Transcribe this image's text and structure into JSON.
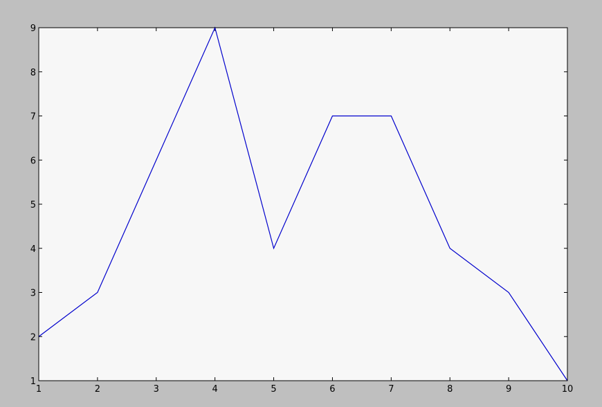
{
  "chart_data": {
    "type": "line",
    "title": "",
    "xlabel": "",
    "ylabel": "",
    "xlim": [
      1,
      10
    ],
    "ylim": [
      1,
      9
    ],
    "x_ticks": [
      "1",
      "2",
      "3",
      "4",
      "5",
      "6",
      "7",
      "8",
      "9",
      "10"
    ],
    "y_ticks": [
      "1",
      "2",
      "3",
      "4",
      "5",
      "6",
      "7",
      "8",
      "9"
    ],
    "grid": false,
    "series": [
      {
        "color": "#0000cc",
        "x": [
          1,
          2,
          3,
          4,
          5,
          6,
          7,
          8,
          9,
          10
        ],
        "y": [
          2,
          3,
          6,
          9,
          4,
          7,
          7,
          4,
          3,
          1
        ]
      }
    ]
  },
  "colors": {
    "figure_background": "#bfbfbf",
    "plot_background": "#f7f7f7",
    "line": "#0000cc"
  }
}
